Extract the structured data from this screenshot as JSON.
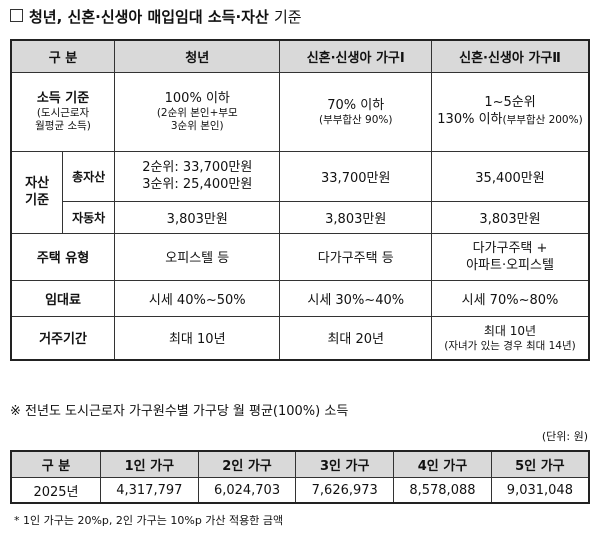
{
  "title": {
    "bold": "청년, 신혼·신생아 매입임대 소득·자산",
    "light": "기준"
  },
  "main_table": {
    "headers": [
      "구 분",
      "청년",
      "신혼·신생아 가구Ⅰ",
      "신혼·신생아 가구Ⅱ"
    ],
    "income": {
      "label": "소득 기준",
      "sublabel_1": "(도시근로자",
      "sublabel_2": "월평균 소득)",
      "youth": "100% 이하",
      "youth_note_1": "(2순위 본인+부모",
      "youth_note_2": "3순위 본인)",
      "newlywed1": "70% 이하",
      "newlywed1_note": "(부부합산 90%)",
      "newlywed2_1": "1~5순위",
      "newlywed2_2": "130% 이하",
      "newlywed2_note": "(부부합산 200%)"
    },
    "assets": {
      "label_1": "자산",
      "label_2": "기준",
      "total_label": "총자산",
      "total_youth_1": "2순위: 33,700만원",
      "total_youth_2": "3순위: 25,400만원",
      "total_newlywed1": "33,700만원",
      "total_newlywed2": "35,400만원",
      "car_label": "자동차",
      "car_youth": "3,803만원",
      "car_newlywed1": "3,803만원",
      "car_newlywed2": "3,803만원"
    },
    "housing": {
      "label": "주택 유형",
      "youth": "오피스텔 등",
      "newlywed1": "다가구주택 등",
      "newlywed2_1": "다가구주택 +",
      "newlywed2_2": "아파트·오피스텔"
    },
    "rent": {
      "label": "임대료",
      "youth": "시세 40%~50%",
      "newlywed1": "시세 30%~40%",
      "newlywed2": "시세 70%~80%"
    },
    "period": {
      "label": "거주기간",
      "youth": "최대 10년",
      "newlywed1": "최대 20년",
      "newlywed2_1": "최대 10년",
      "newlywed2_2": "(자녀가 있는 경우 최대 14년)"
    }
  },
  "note_heading": "※ 전년도 도시근로자 가구원수별 가구당 월 평균(100%) 소득",
  "unit": "(단위: 원)",
  "income_table": {
    "headers": [
      "구 분",
      "1인 가구",
      "2인 가구",
      "3인 가구",
      "4인 가구",
      "5인 가구"
    ],
    "row": [
      "2025년",
      "4,317,797",
      "6,024,703",
      "7,626,973",
      "8,578,088",
      "9,031,048"
    ]
  },
  "footnote": "* 1인 가구는 20%p, 2인 가구는 10%p 가산 적용한 금액"
}
